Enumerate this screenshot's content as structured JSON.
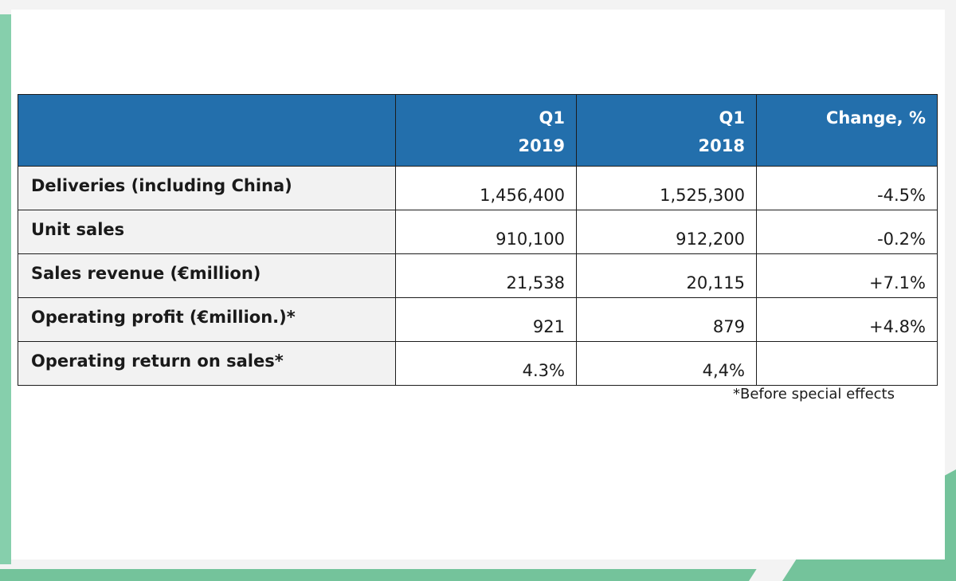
{
  "table": {
    "headers": [
      {
        "line1": "",
        "line2": ""
      },
      {
        "line1": "Q1",
        "line2": "2019"
      },
      {
        "line1": "Q1",
        "line2": "2018"
      },
      {
        "line1": "Change, %",
        "line2": ""
      }
    ],
    "rows": [
      {
        "label": "Deliveries (including China)",
        "q1_2019": "1,456,400",
        "q1_2018": "1,525,300",
        "change": "-4.5%"
      },
      {
        "label": "Unit sales",
        "q1_2019": "910,100",
        "q1_2018": "912,200",
        "change": "-0.2%"
      },
      {
        "label": "Sales revenue (€million)",
        "q1_2019": "21,538",
        "q1_2018": "20,115",
        "change": "+7.1%"
      },
      {
        "label": "Operating profit (€million.)*",
        "q1_2019": "921",
        "q1_2018": "879",
        "change": "+4.8%"
      },
      {
        "label": "Operating return on sales*",
        "q1_2019": "4.3%",
        "q1_2018": "4,4%",
        "change": ""
      }
    ]
  },
  "footnote": "*Before special effects",
  "colors": {
    "header_bg": "#236fac",
    "label_bg": "#f2f2f2",
    "accent_green": "#74c39b"
  }
}
